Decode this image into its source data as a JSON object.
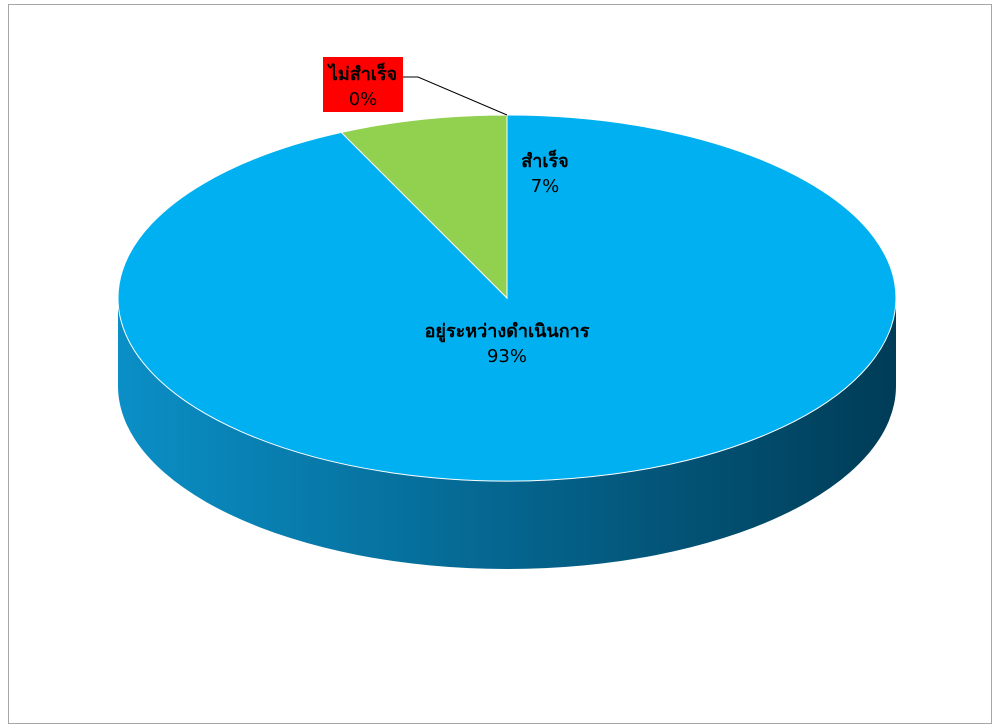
{
  "chart_data": {
    "type": "pie",
    "style": "3d",
    "slices": [
      {
        "label": "อยู่ระหว่างดำเนินการ",
        "percent_label": "93%",
        "value": 93,
        "color": "#00b0f0"
      },
      {
        "label": "สำเร็จ",
        "percent_label": "7%",
        "value": 7,
        "color": "#92d050"
      },
      {
        "label": "ไม่สำเร็จ",
        "percent_label": "0%",
        "value": 0,
        "color": "#ff0000"
      }
    ],
    "side_color_light": "#0a8fc6",
    "side_color_dark": "#003c57",
    "legend": "none"
  }
}
